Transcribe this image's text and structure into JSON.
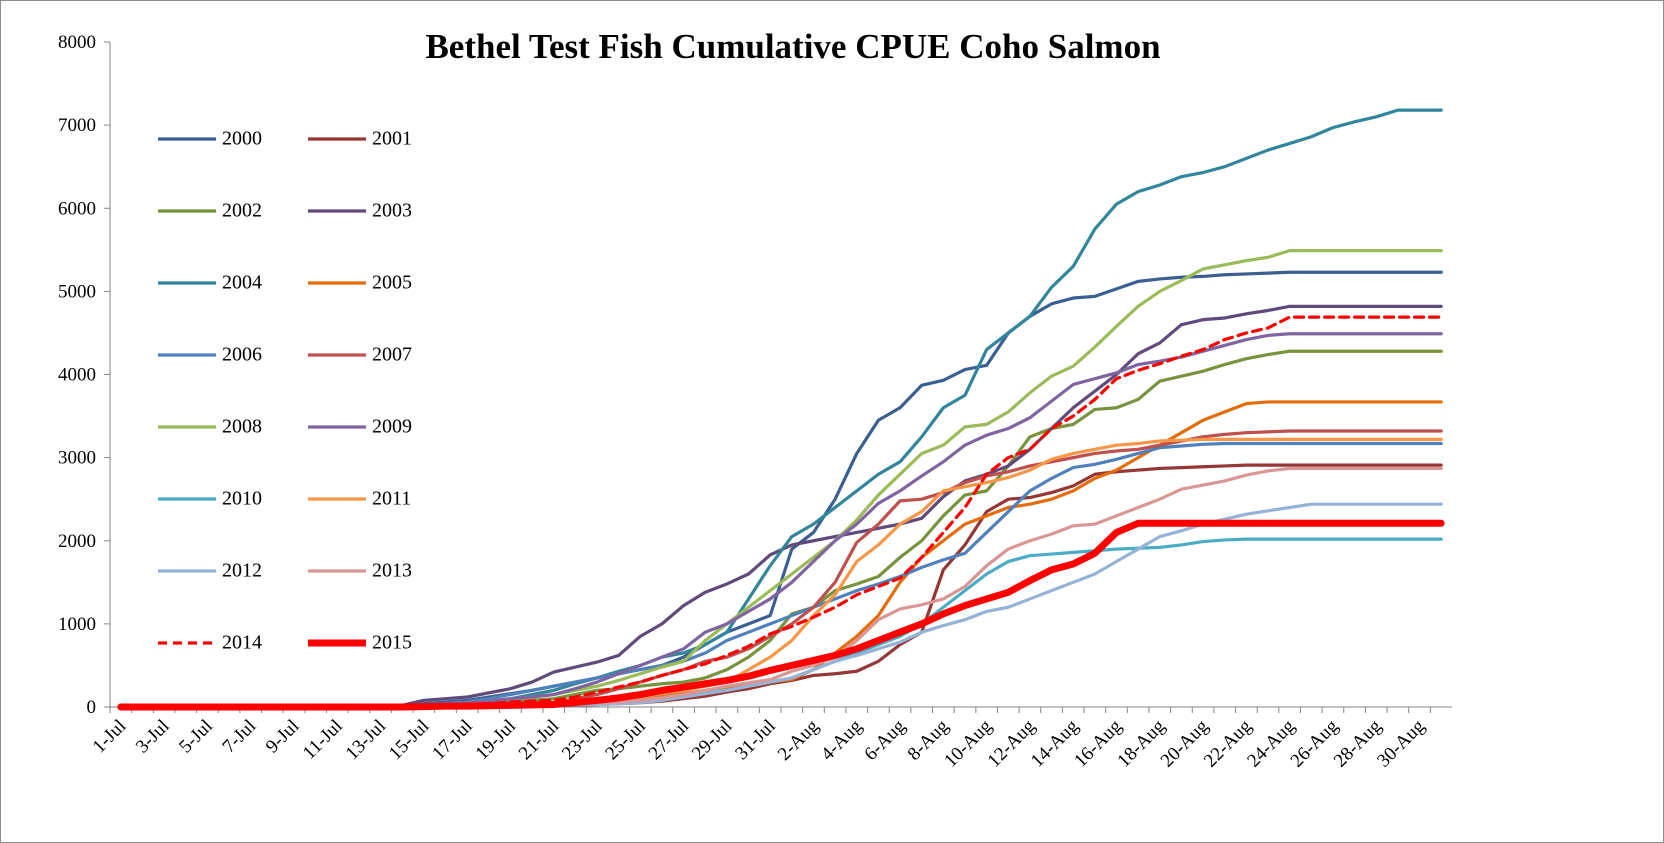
{
  "chart_data": {
    "type": "line",
    "title": "Bethel Test Fish Cumulative CPUE Coho Salmon",
    "categories": [
      "1-Jul",
      null,
      "3-Jul",
      null,
      "5-Jul",
      null,
      "7-Jul",
      null,
      "9-Jul",
      null,
      "11-Jul",
      null,
      "13-Jul",
      null,
      "15-Jul",
      null,
      "17-Jul",
      null,
      "19-Jul",
      null,
      "21-Jul",
      null,
      "23-Jul",
      null,
      "25-Jul",
      null,
      "27-Jul",
      null,
      "29-Jul",
      null,
      "31-Jul",
      null,
      "2-Aug",
      null,
      "4-Aug",
      null,
      "6-Aug",
      null,
      "8-Aug",
      null,
      "10-Aug",
      null,
      "12-Aug",
      null,
      "14-Aug",
      null,
      "16-Aug",
      null,
      "18-Aug",
      null,
      "20-Aug",
      null,
      "22-Aug",
      null,
      "24-Aug",
      null,
      "26-Aug",
      null,
      "28-Aug",
      null,
      "30-Aug",
      null
    ],
    "ylim": [
      0,
      8000
    ],
    "yticks": [
      0,
      1000,
      2000,
      3000,
      4000,
      5000,
      6000,
      7000,
      8000
    ],
    "grid": false,
    "legend": "upper left",
    "series": [
      {
        "name": "2000",
        "color": "#3b5f92",
        "values": [
          0,
          0,
          0,
          0,
          0,
          0,
          0,
          0,
          0,
          0,
          0,
          0,
          10,
          20,
          40,
          60,
          80,
          120,
          160,
          200,
          250,
          300,
          350,
          400,
          450,
          500,
          600,
          750,
          900,
          1000,
          1100,
          1900,
          2100,
          2500,
          3050,
          3450,
          3600,
          3870,
          3930,
          4060,
          4110,
          4500,
          4700,
          4850,
          4920,
          4940,
          5030,
          5120,
          5150,
          5170,
          5180,
          5200,
          5210,
          5220,
          5230,
          5230,
          5230,
          5230,
          5230,
          5230,
          5230,
          5230
        ]
      },
      {
        "name": "2001",
        "color": "#953735",
        "values": [
          0,
          0,
          0,
          0,
          0,
          0,
          0,
          0,
          0,
          0,
          0,
          0,
          0,
          0,
          0,
          0,
          0,
          0,
          10,
          10,
          20,
          20,
          30,
          40,
          50,
          70,
          100,
          130,
          180,
          220,
          280,
          320,
          380,
          400,
          430,
          550,
          750,
          900,
          1650,
          1950,
          2350,
          2500,
          2520,
          2580,
          2660,
          2800,
          2830,
          2850,
          2870,
          2880,
          2890,
          2900,
          2910,
          2910,
          2910,
          2910,
          2910,
          2910,
          2910,
          2910,
          2910,
          2910
        ]
      },
      {
        "name": "2002",
        "color": "#77933c",
        "values": [
          0,
          0,
          0,
          0,
          0,
          0,
          0,
          0,
          0,
          0,
          0,
          0,
          0,
          10,
          20,
          30,
          40,
          50,
          60,
          80,
          100,
          150,
          200,
          220,
          250,
          280,
          300,
          350,
          450,
          600,
          800,
          1120,
          1200,
          1400,
          1480,
          1570,
          1800,
          2000,
          2300,
          2550,
          2600,
          2900,
          3250,
          3350,
          3400,
          3580,
          3600,
          3700,
          3920,
          3980,
          4040,
          4120,
          4190,
          4240,
          4280,
          4280,
          4280,
          4280,
          4280,
          4280,
          4280,
          4280
        ]
      },
      {
        "name": "2003",
        "color": "#604a7b",
        "values": [
          0,
          0,
          0,
          0,
          0,
          0,
          0,
          0,
          0,
          0,
          0,
          0,
          10,
          20,
          80,
          100,
          120,
          170,
          220,
          300,
          420,
          480,
          540,
          620,
          850,
          1000,
          1220,
          1380,
          1480,
          1600,
          1830,
          1950,
          2000,
          2050,
          2100,
          2150,
          2200,
          2270,
          2530,
          2720,
          2800,
          2900,
          3100,
          3350,
          3600,
          3800,
          4000,
          4250,
          4380,
          4600,
          4660,
          4680,
          4730,
          4770,
          4820,
          4820,
          4820,
          4820,
          4820,
          4820,
          4820,
          4820
        ]
      },
      {
        "name": "2004",
        "color": "#31859c",
        "values": [
          0,
          0,
          0,
          0,
          0,
          0,
          0,
          0,
          0,
          0,
          0,
          0,
          0,
          10,
          20,
          30,
          50,
          70,
          100,
          150,
          200,
          280,
          350,
          430,
          500,
          600,
          650,
          750,
          900,
          1300,
          1700,
          2050,
          2200,
          2400,
          2600,
          2800,
          2950,
          3250,
          3600,
          3750,
          4300,
          4500,
          4700,
          5050,
          5300,
          5750,
          6050,
          6200,
          6280,
          6380,
          6430,
          6500,
          6600,
          6700,
          6780,
          6860,
          6970,
          7040,
          7100,
          7180,
          7180,
          7180
        ]
      },
      {
        "name": "2005",
        "color": "#e46c0a",
        "values": [
          0,
          0,
          0,
          0,
          0,
          0,
          0,
          0,
          0,
          0,
          0,
          0,
          0,
          0,
          0,
          0,
          0,
          10,
          10,
          15,
          20,
          40,
          60,
          80,
          100,
          130,
          160,
          200,
          220,
          250,
          300,
          330,
          450,
          650,
          850,
          1100,
          1500,
          1800,
          2000,
          2200,
          2300,
          2400,
          2440,
          2500,
          2600,
          2750,
          2850,
          3000,
          3150,
          3300,
          3450,
          3550,
          3650,
          3670,
          3670,
          3670,
          3670,
          3670,
          3670,
          3670,
          3670,
          3670
        ]
      },
      {
        "name": "2006",
        "color": "#4f81bd",
        "values": [
          0,
          0,
          0,
          0,
          0,
          0,
          0,
          0,
          0,
          0,
          0,
          0,
          0,
          10,
          20,
          40,
          60,
          100,
          150,
          200,
          250,
          300,
          350,
          400,
          450,
          500,
          550,
          650,
          800,
          900,
          1000,
          1100,
          1200,
          1300,
          1400,
          1480,
          1570,
          1680,
          1770,
          1850,
          2100,
          2350,
          2600,
          2750,
          2880,
          2920,
          2980,
          3050,
          3120,
          3140,
          3160,
          3170,
          3170,
          3170,
          3170,
          3170,
          3170,
          3170,
          3170,
          3170,
          3170,
          3170
        ]
      },
      {
        "name": "2007",
        "color": "#c0504d",
        "values": [
          0,
          0,
          0,
          0,
          0,
          0,
          0,
          0,
          0,
          0,
          0,
          0,
          0,
          0,
          0,
          10,
          15,
          20,
          30,
          40,
          50,
          100,
          150,
          220,
          300,
          380,
          450,
          550,
          600,
          700,
          850,
          1000,
          1200,
          1500,
          1980,
          2200,
          2480,
          2500,
          2580,
          2700,
          2780,
          2830,
          2900,
          2950,
          3000,
          3050,
          3080,
          3100,
          3150,
          3200,
          3250,
          3280,
          3300,
          3310,
          3320,
          3320,
          3320,
          3320,
          3320,
          3320,
          3320,
          3320
        ]
      },
      {
        "name": "2008",
        "color": "#9bbb59",
        "values": [
          0,
          0,
          0,
          0,
          0,
          0,
          0,
          0,
          0,
          0,
          0,
          0,
          0,
          10,
          20,
          30,
          50,
          70,
          100,
          120,
          150,
          200,
          250,
          320,
          400,
          480,
          550,
          800,
          1000,
          1200,
          1400,
          1600,
          1800,
          2000,
          2250,
          2550,
          2800,
          3050,
          3150,
          3370,
          3400,
          3550,
          3780,
          3980,
          4100,
          4330,
          4580,
          4820,
          5000,
          5130,
          5270,
          5320,
          5370,
          5410,
          5490,
          5490,
          5490,
          5490,
          5490,
          5490,
          5490,
          5490
        ]
      },
      {
        "name": "2009",
        "color": "#8064a2",
        "values": [
          0,
          0,
          0,
          0,
          0,
          0,
          0,
          0,
          0,
          0,
          0,
          0,
          0,
          10,
          20,
          30,
          50,
          70,
          100,
          120,
          150,
          220,
          300,
          400,
          500,
          600,
          700,
          900,
          1000,
          1150,
          1300,
          1500,
          1750,
          2000,
          2200,
          2450,
          2600,
          2780,
          2950,
          3150,
          3270,
          3350,
          3480,
          3680,
          3880,
          3950,
          4020,
          4120,
          4160,
          4210,
          4280,
          4350,
          4420,
          4470,
          4490,
          4490,
          4490,
          4490,
          4490,
          4490,
          4490,
          4490
        ]
      },
      {
        "name": "2010",
        "color": "#4bacc6",
        "values": [
          0,
          0,
          0,
          0,
          0,
          0,
          0,
          0,
          0,
          0,
          0,
          0,
          0,
          0,
          0,
          0,
          10,
          10,
          20,
          30,
          40,
          50,
          60,
          70,
          80,
          110,
          150,
          180,
          200,
          250,
          300,
          350,
          450,
          550,
          650,
          750,
          850,
          1000,
          1200,
          1400,
          1600,
          1750,
          1820,
          1840,
          1860,
          1880,
          1900,
          1910,
          1920,
          1950,
          1990,
          2010,
          2020,
          2020,
          2020,
          2020,
          2020,
          2020,
          2020,
          2020,
          2020,
          2020
        ]
      },
      {
        "name": "2011",
        "color": "#f79646",
        "values": [
          0,
          0,
          0,
          0,
          0,
          0,
          0,
          0,
          0,
          0,
          0,
          0,
          0,
          0,
          0,
          0,
          0,
          10,
          15,
          20,
          30,
          50,
          70,
          90,
          120,
          160,
          200,
          250,
          300,
          450,
          600,
          800,
          1100,
          1350,
          1750,
          1950,
          2200,
          2350,
          2600,
          2650,
          2700,
          2760,
          2850,
          2980,
          3050,
          3100,
          3150,
          3170,
          3200,
          3210,
          3220,
          3220,
          3220,
          3220,
          3220,
          3220,
          3220,
          3220,
          3220,
          3220,
          3220,
          3220
        ]
      },
      {
        "name": "2012",
        "color": "#95b3d7",
        "values": [
          0,
          0,
          0,
          0,
          0,
          0,
          0,
          0,
          0,
          0,
          0,
          0,
          0,
          0,
          0,
          0,
          0,
          0,
          10,
          10,
          20,
          25,
          30,
          40,
          50,
          80,
          120,
          160,
          200,
          250,
          300,
          350,
          450,
          550,
          620,
          700,
          780,
          900,
          980,
          1050,
          1150,
          1200,
          1300,
          1400,
          1500,
          1600,
          1750,
          1900,
          2050,
          2120,
          2200,
          2260,
          2320,
          2360,
          2400,
          2440,
          2440,
          2440,
          2440,
          2440,
          2440,
          2440
        ]
      },
      {
        "name": "2013",
        "color": "#d99694",
        "values": [
          0,
          0,
          0,
          0,
          0,
          0,
          0,
          0,
          0,
          0,
          0,
          0,
          0,
          0,
          0,
          0,
          0,
          10,
          10,
          20,
          30,
          40,
          50,
          60,
          80,
          110,
          150,
          200,
          250,
          290,
          330,
          430,
          500,
          600,
          800,
          1050,
          1180,
          1230,
          1300,
          1450,
          1700,
          1900,
          2000,
          2080,
          2180,
          2200,
          2300,
          2400,
          2500,
          2620,
          2670,
          2720,
          2790,
          2840,
          2870,
          2870,
          2870,
          2870,
          2870,
          2870,
          2870,
          2870
        ]
      },
      {
        "name": "2014",
        "color": "#ff0000",
        "line_style": "dashed",
        "values": [
          0,
          0,
          0,
          0,
          0,
          0,
          0,
          0,
          0,
          0,
          0,
          0,
          0,
          5,
          10,
          20,
          30,
          40,
          60,
          70,
          80,
          120,
          180,
          240,
          300,
          380,
          450,
          520,
          620,
          730,
          880,
          970,
          1080,
          1200,
          1350,
          1450,
          1550,
          1800,
          2100,
          2400,
          2800,
          3000,
          3100,
          3350,
          3500,
          3700,
          3950,
          4050,
          4130,
          4220,
          4300,
          4420,
          4500,
          4560,
          4690,
          4690,
          4690,
          4690,
          4690,
          4690,
          4690,
          4690
        ]
      },
      {
        "name": "2015",
        "color": "#ff0000",
        "line_style": "bold",
        "values": [
          0,
          0,
          0,
          0,
          0,
          0,
          0,
          0,
          0,
          0,
          0,
          0,
          0,
          0,
          5,
          10,
          10,
          15,
          20,
          25,
          30,
          55,
          80,
          110,
          150,
          200,
          240,
          280,
          320,
          370,
          440,
          500,
          560,
          620,
          700,
          800,
          900,
          1000,
          1120,
          1220,
          1300,
          1380,
          1520,
          1650,
          1720,
          1850,
          2100,
          2210,
          2210,
          2210,
          2210,
          2210,
          2210,
          2210,
          2210,
          2210,
          2210,
          2210,
          2210,
          2210,
          2210,
          2210
        ]
      }
    ]
  }
}
